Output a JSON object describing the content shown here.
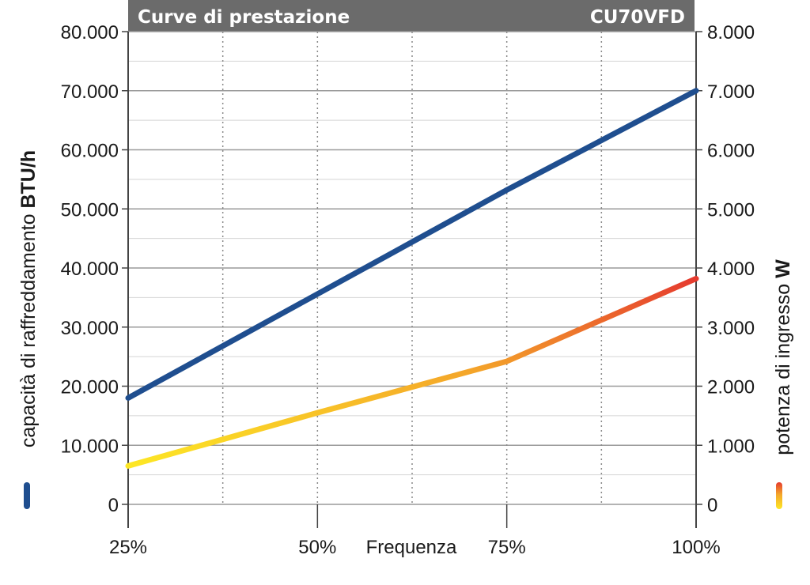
{
  "chart_data": {
    "type": "line",
    "title": "Curve di prestazione",
    "model": "CU70VFD",
    "xlabel": "Frequenza",
    "categories": [
      "25%",
      "50%",
      "75%",
      "100%"
    ],
    "y_left": {
      "label": "capacità di raffreddamento",
      "unit": "BTU/h",
      "ylim": [
        0,
        80000
      ],
      "ticks": [
        "0",
        "10.000",
        "20.000",
        "30.000",
        "40.000",
        "50.000",
        "60.000",
        "70.000",
        "80.000"
      ]
    },
    "y_right": {
      "label": "potenza di ingresso",
      "unit": "W",
      "ylim": [
        0,
        8000
      ],
      "ticks": [
        "0",
        "1.000",
        "2.000",
        "3.000",
        "4.000",
        "5.000",
        "6.000",
        "7.000",
        "8.000"
      ]
    },
    "series": [
      {
        "axis": "left",
        "x": [
          25,
          75,
          100
        ],
        "values": [
          18000,
          53200,
          70000
        ],
        "color": "#1f4e8f"
      },
      {
        "axis": "right",
        "x": [
          25,
          50,
          75,
          100
        ],
        "values": [
          650,
          1550,
          2420,
          3820
        ],
        "gradient": [
          "#fde725",
          "#f4a62a",
          "#e53a2e"
        ]
      }
    ],
    "grid": true
  }
}
